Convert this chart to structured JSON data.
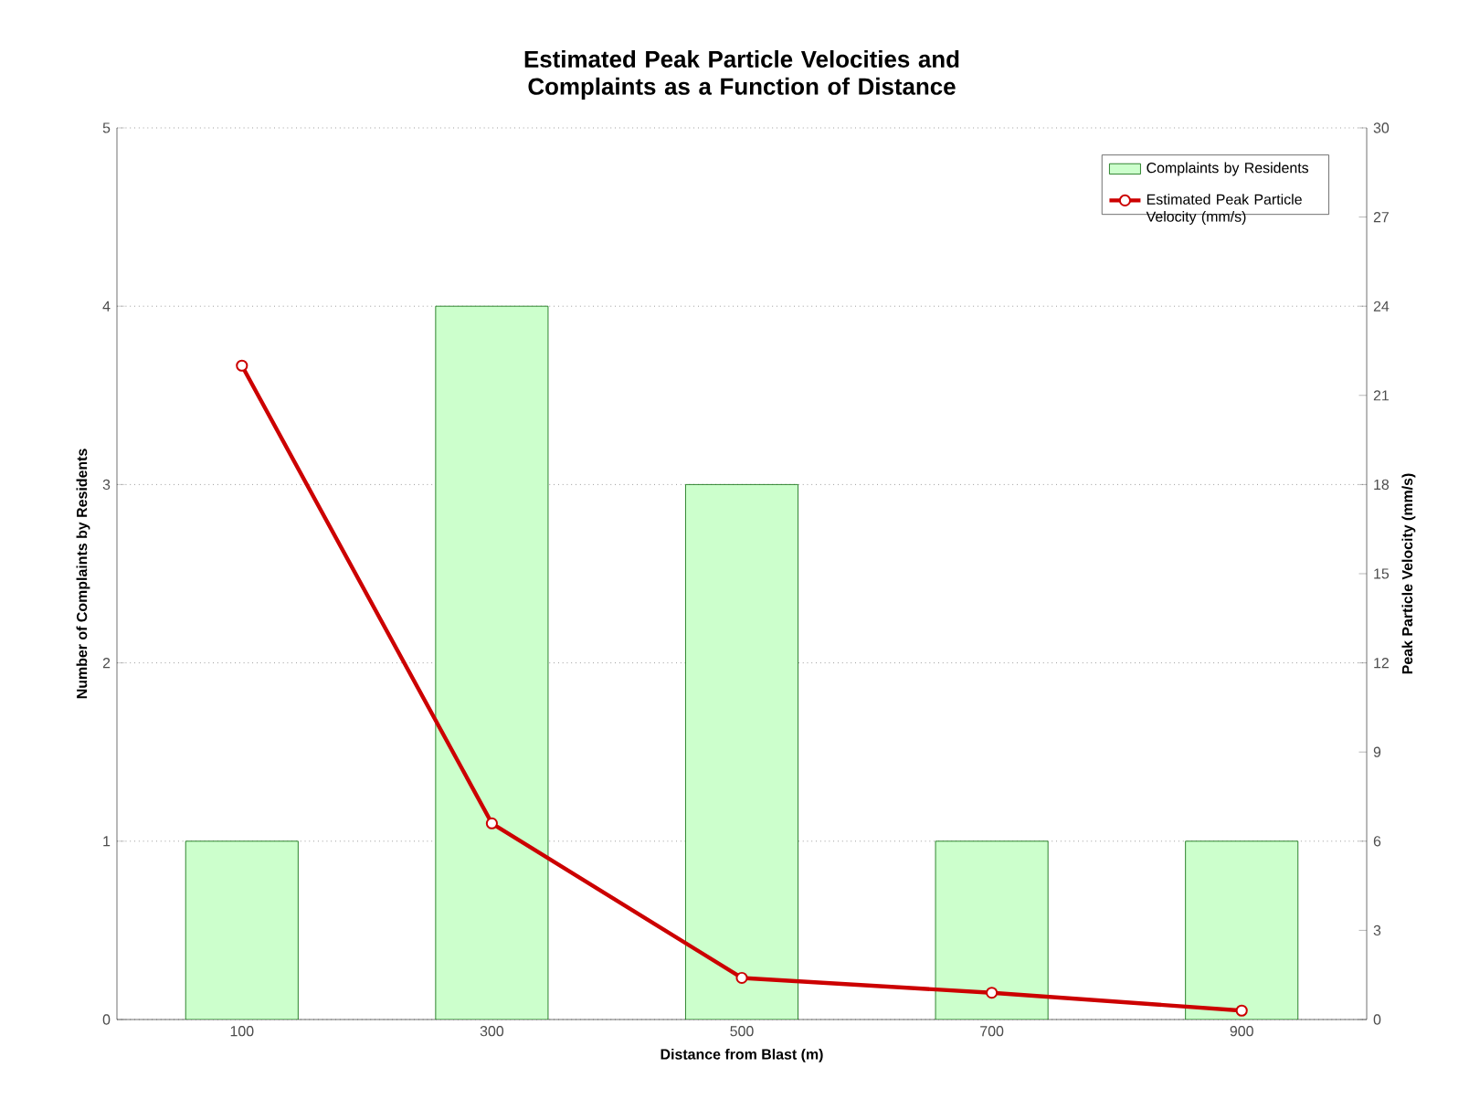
{
  "chart_data": {
    "type": "bar",
    "title": "Estimated Peak Particle Velocities and Complaints as a Function of Distance",
    "xlabel": "Distance from Blast (m)",
    "ylabel": "Number of Complaints by Residents",
    "y2label": "Peak Particle Velocity (mm/s)",
    "categories": [
      "100",
      "300",
      "500",
      "700",
      "900"
    ],
    "series": [
      {
        "name": "Complaints by Residents",
        "color": "#ccffcc",
        "values": [
          1,
          4,
          3,
          1,
          1
        ]
      },
      {
        "name": "Estimated Peak Particle Velocity (mm/s)",
        "type": "line",
        "axis": "y2",
        "color": "#cc0000",
        "marker": "circle",
        "values": [
          22,
          6.6,
          1.4,
          0.9,
          0.3
        ]
      }
    ],
    "ylim": [
      0,
      5
    ],
    "yticks": [
      0,
      1,
      2,
      3,
      4,
      5
    ],
    "y2lim": [
      0,
      30
    ],
    "y2ticks": [
      0,
      3,
      6,
      9,
      12,
      15,
      18,
      21,
      24,
      27,
      30
    ],
    "grid": "y",
    "legend": "top right"
  }
}
